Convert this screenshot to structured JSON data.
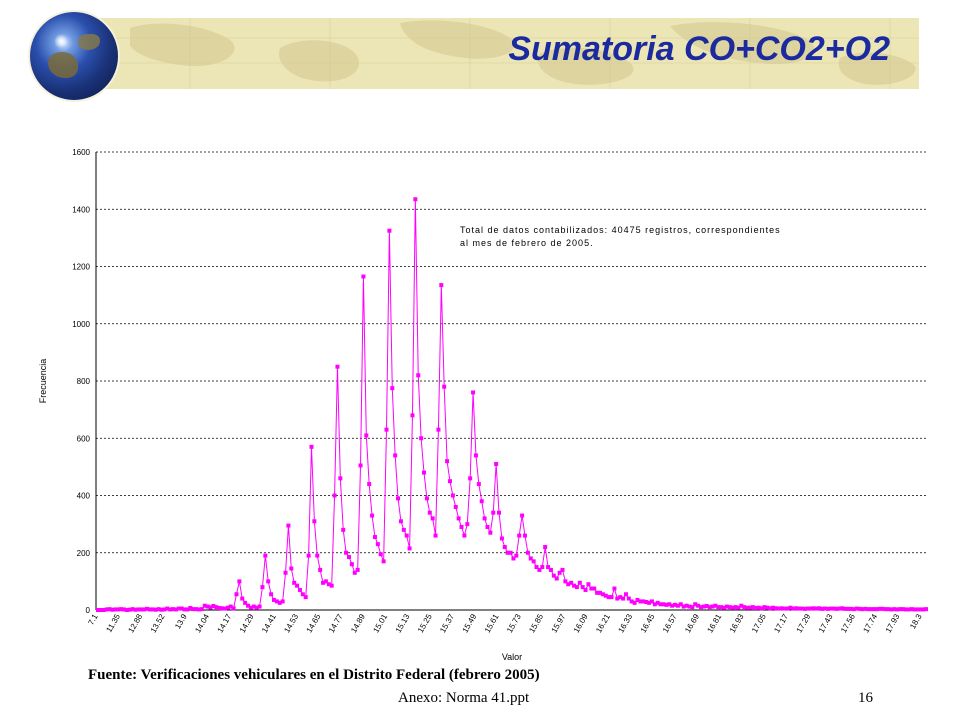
{
  "slide": {
    "title": "Sumatoria CO+CO2+O2",
    "source_note": "Fuente: Verificaciones vehiculares en el Distrito Federal (febrero 2005)",
    "footer_file": "Anexo: Norma 41.ppt",
    "page_number": "16"
  },
  "colors": {
    "series": "#ff00ff",
    "title": "#1b2a9e",
    "banner": "#ece6b7"
  },
  "chart_data": {
    "type": "line",
    "title": "",
    "xlabel": "Valor",
    "ylabel": "Frecuencia",
    "ylim": [
      0,
      1600
    ],
    "yticks": [
      0,
      200,
      400,
      600,
      800,
      1000,
      1200,
      1400,
      1600
    ],
    "grid": "horizontal dashed",
    "annotation": [
      "Total de datos contabilizados: 40475 registros, correspondientes",
      "al mes de febrero de 2005."
    ],
    "x_tick_labels": [
      "7.1",
      "11.35",
      "12.88",
      "13.52",
      "13.9",
      "14.04",
      "14.17",
      "14.29",
      "14.41",
      "14.53",
      "14.65",
      "14.77",
      "14.89",
      "15.01",
      "15.13",
      "15.25",
      "15.37",
      "15.49",
      "15.61",
      "15.73",
      "15.85",
      "15.97",
      "16.09",
      "16.21",
      "16.33",
      "16.45",
      "16.57",
      "16.69",
      "16.81",
      "16.93",
      "17.05",
      "17.17",
      "17.29",
      "17.43",
      "17.56",
      "17.74",
      "17.93",
      "18.3"
    ],
    "values": [
      0,
      0,
      0,
      2,
      3,
      1,
      2,
      2,
      3,
      2,
      0,
      1,
      3,
      1,
      2,
      2,
      2,
      4,
      2,
      2,
      1,
      3,
      1,
      2,
      5,
      2,
      3,
      2,
      5,
      5,
      2,
      2,
      7,
      3,
      3,
      2,
      3,
      15,
      12,
      9,
      14,
      10,
      7,
      6,
      5,
      8,
      12,
      6,
      55,
      100,
      40,
      25,
      15,
      8,
      12,
      8,
      12,
      80,
      190,
      100,
      55,
      35,
      30,
      25,
      30,
      130,
      295,
      145,
      95,
      85,
      70,
      55,
      45,
      190,
      570,
      310,
      190,
      140,
      95,
      100,
      90,
      85,
      400,
      850,
      460,
      280,
      200,
      185,
      160,
      130,
      140,
      505,
      1165,
      610,
      440,
      330,
      255,
      230,
      195,
      170,
      630,
      1325,
      775,
      540,
      390,
      310,
      280,
      260,
      215,
      680,
      1435,
      820,
      600,
      480,
      390,
      340,
      320,
      260,
      630,
      1135,
      780,
      520,
      450,
      400,
      360,
      320,
      290,
      260,
      300,
      460,
      760,
      540,
      440,
      380,
      320,
      290,
      270,
      340,
      510,
      340,
      250,
      220,
      200,
      200,
      180,
      190,
      260,
      330,
      260,
      200,
      180,
      170,
      150,
      140,
      150,
      220,
      150,
      140,
      120,
      110,
      130,
      140,
      100,
      90,
      95,
      85,
      80,
      95,
      80,
      70,
      90,
      75,
      75,
      60,
      60,
      55,
      50,
      45,
      45,
      75,
      40,
      45,
      40,
      55,
      40,
      30,
      25,
      35,
      30,
      30,
      28,
      25,
      30,
      20,
      25,
      20,
      20,
      18,
      20,
      15,
      18,
      15,
      20,
      12,
      15,
      12,
      10,
      20,
      15,
      10,
      12,
      14,
      10,
      12,
      15,
      10,
      10,
      8,
      12,
      10,
      8,
      10,
      8,
      15,
      10,
      8,
      8,
      10,
      7,
      8,
      6,
      10,
      8,
      6,
      8,
      6,
      5,
      6,
      5,
      5,
      8,
      5,
      6,
      5,
      5,
      4,
      5,
      5,
      6,
      5,
      6,
      4,
      5,
      4,
      5,
      5,
      4,
      5,
      6,
      4,
      4,
      4,
      3,
      5,
      4,
      3,
      4,
      3,
      3,
      3,
      3,
      4,
      4,
      3,
      3,
      2,
      3,
      2,
      3,
      3,
      2,
      2,
      3,
      2,
      2,
      2,
      2,
      3
    ]
  }
}
